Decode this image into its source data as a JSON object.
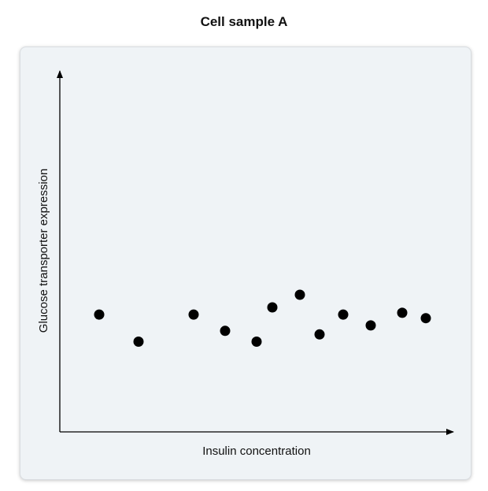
{
  "chart_data": {
    "type": "scatter",
    "title": "Cell sample A",
    "xlabel": "Insulin concentration",
    "ylabel": "Glucose transporter expression",
    "xlim": [
      0,
      100
    ],
    "ylim": [
      0,
      100
    ],
    "x_ticks_shown": false,
    "y_ticks_shown": false,
    "grid": false,
    "legend": "none",
    "points": [
      {
        "x": 10,
        "y": 32.5
      },
      {
        "x": 20,
        "y": 25
      },
      {
        "x": 34,
        "y": 32.5
      },
      {
        "x": 42,
        "y": 28
      },
      {
        "x": 50,
        "y": 25
      },
      {
        "x": 54,
        "y": 34.5
      },
      {
        "x": 61,
        "y": 38
      },
      {
        "x": 66,
        "y": 27
      },
      {
        "x": 72,
        "y": 32.5
      },
      {
        "x": 79,
        "y": 29.5
      },
      {
        "x": 87,
        "y": 33
      },
      {
        "x": 93,
        "y": 31.5
      }
    ]
  },
  "style": {
    "panel_background": "#eff3f6",
    "panel_border": "#d9dde1",
    "axis_color": "#000000",
    "point_color": "#000000"
  }
}
